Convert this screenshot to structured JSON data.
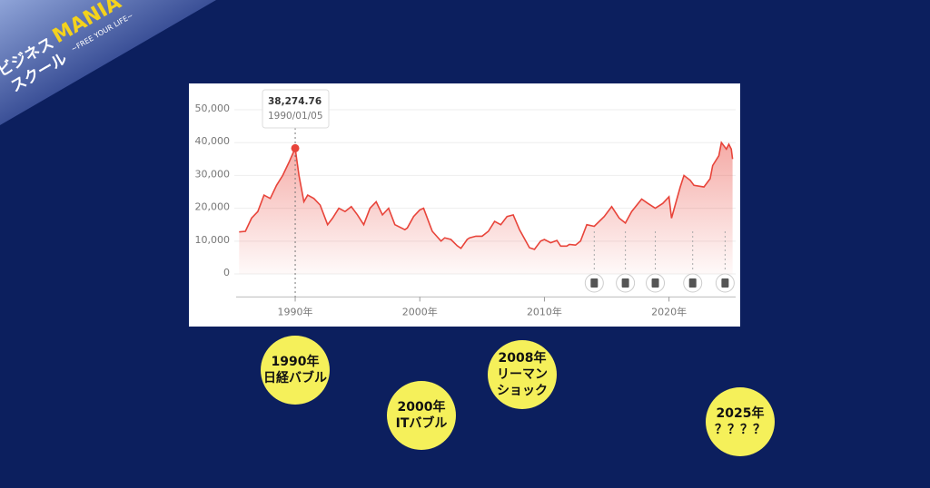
{
  "chart_data": {
    "type": "line",
    "x": [
      1985.5,
      1986,
      1986.5,
      1987,
      1987.5,
      1988,
      1988.5,
      1989,
      1989.5,
      1990,
      1990.3,
      1990.7,
      1991,
      1991.5,
      1992,
      1992.6,
      1993,
      1993.5,
      1994,
      1994.5,
      1995,
      1995.5,
      1996,
      1996.5,
      1997,
      1997.5,
      1998,
      1998.8,
      1999,
      1999.5,
      2000,
      2000.3,
      2000.8,
      2001,
      2001.7,
      2002,
      2002.5,
      2003,
      2003.3,
      2003.8,
      2004,
      2004.5,
      2005,
      2005.5,
      2006,
      2006.5,
      2007,
      2007.5,
      2008,
      2008.8,
      2009.2,
      2009.7,
      2010,
      2010.5,
      2011,
      2011.3,
      2011.8,
      2012,
      2012.5,
      2012.9,
      2013.4,
      2014,
      2014.8,
      2015.4,
      2016,
      2016.5,
      2017,
      2017.8,
      2018.3,
      2018.9,
      2019.5,
      2020,
      2020.2,
      2020.9,
      2021.2,
      2021.7,
      2022,
      2022.8,
      2023.3,
      2023.5,
      2024,
      2024.2,
      2024.6,
      2024.8,
      2025,
      2025.1
    ],
    "series": [
      {
        "color": "#e8443a",
        "values": [
          12800,
          13000,
          17000,
          19000,
          24000,
          23000,
          27000,
          30000,
          34000,
          38274.76,
          30000,
          22000,
          24000,
          23000,
          21000,
          15000,
          17000,
          20000,
          19000,
          20500,
          18000,
          15000,
          20000,
          22000,
          18000,
          20000,
          15000,
          13500,
          14000,
          17500,
          19500,
          20000,
          15000,
          13000,
          10000,
          11000,
          10500,
          8600,
          7800,
          10500,
          11000,
          11500,
          11500,
          13000,
          16000,
          15000,
          17500,
          18000,
          13500,
          8000,
          7500,
          10000,
          10500,
          9500,
          10200,
          8500,
          8500,
          9000,
          8800,
          10000,
          15000,
          14500,
          17500,
          20500,
          17000,
          15500,
          19000,
          22800,
          21500,
          20000,
          21500,
          23500,
          17000,
          26500,
          30000,
          28500,
          27000,
          26500,
          29000,
          33000,
          36000,
          40000,
          38000,
          39500,
          38000,
          35000
        ]
      }
    ],
    "xlim": [
      1985.5,
      2025.5
    ],
    "ylim": [
      -7000,
      58000
    ],
    "xticks": [
      {
        "value": 1990,
        "label": "1990年"
      },
      {
        "value": 2000,
        "label": "2000年"
      },
      {
        "value": 2010,
        "label": "2010年"
      },
      {
        "value": 2020,
        "label": "2020年"
      }
    ],
    "yticks": [
      0,
      {
        "value": 10000,
        "label": "10,000"
      },
      {
        "value": 20000,
        "label": "20,000"
      },
      {
        "value": 30000,
        "label": "30,000"
      },
      {
        "value": 40000,
        "label": "40,000"
      },
      {
        "value": 50000,
        "label": "50,000"
      }
    ],
    "grid": true,
    "annotations": {
      "peak": {
        "x": 1990,
        "value": 38274.76,
        "label": "38,274.76",
        "date": "1990/01/05"
      }
    },
    "events_x": [
      2014,
      2016.5,
      2018.9,
      2021.9,
      2024.5
    ]
  },
  "logo": {
    "line1": "ビジネス",
    "brand": "MANIA",
    "line2": "スクール",
    "tagline": "~FREE YOUR LIFE~"
  },
  "bubbles": [
    {
      "lines": [
        "1990年",
        "日経バブル"
      ]
    },
    {
      "lines": [
        "2000年",
        "ITバブル"
      ]
    },
    {
      "lines": [
        "2008年",
        "リーマン",
        "ショック"
      ]
    },
    {
      "lines": [
        "2025年",
        "？？？？"
      ]
    }
  ]
}
